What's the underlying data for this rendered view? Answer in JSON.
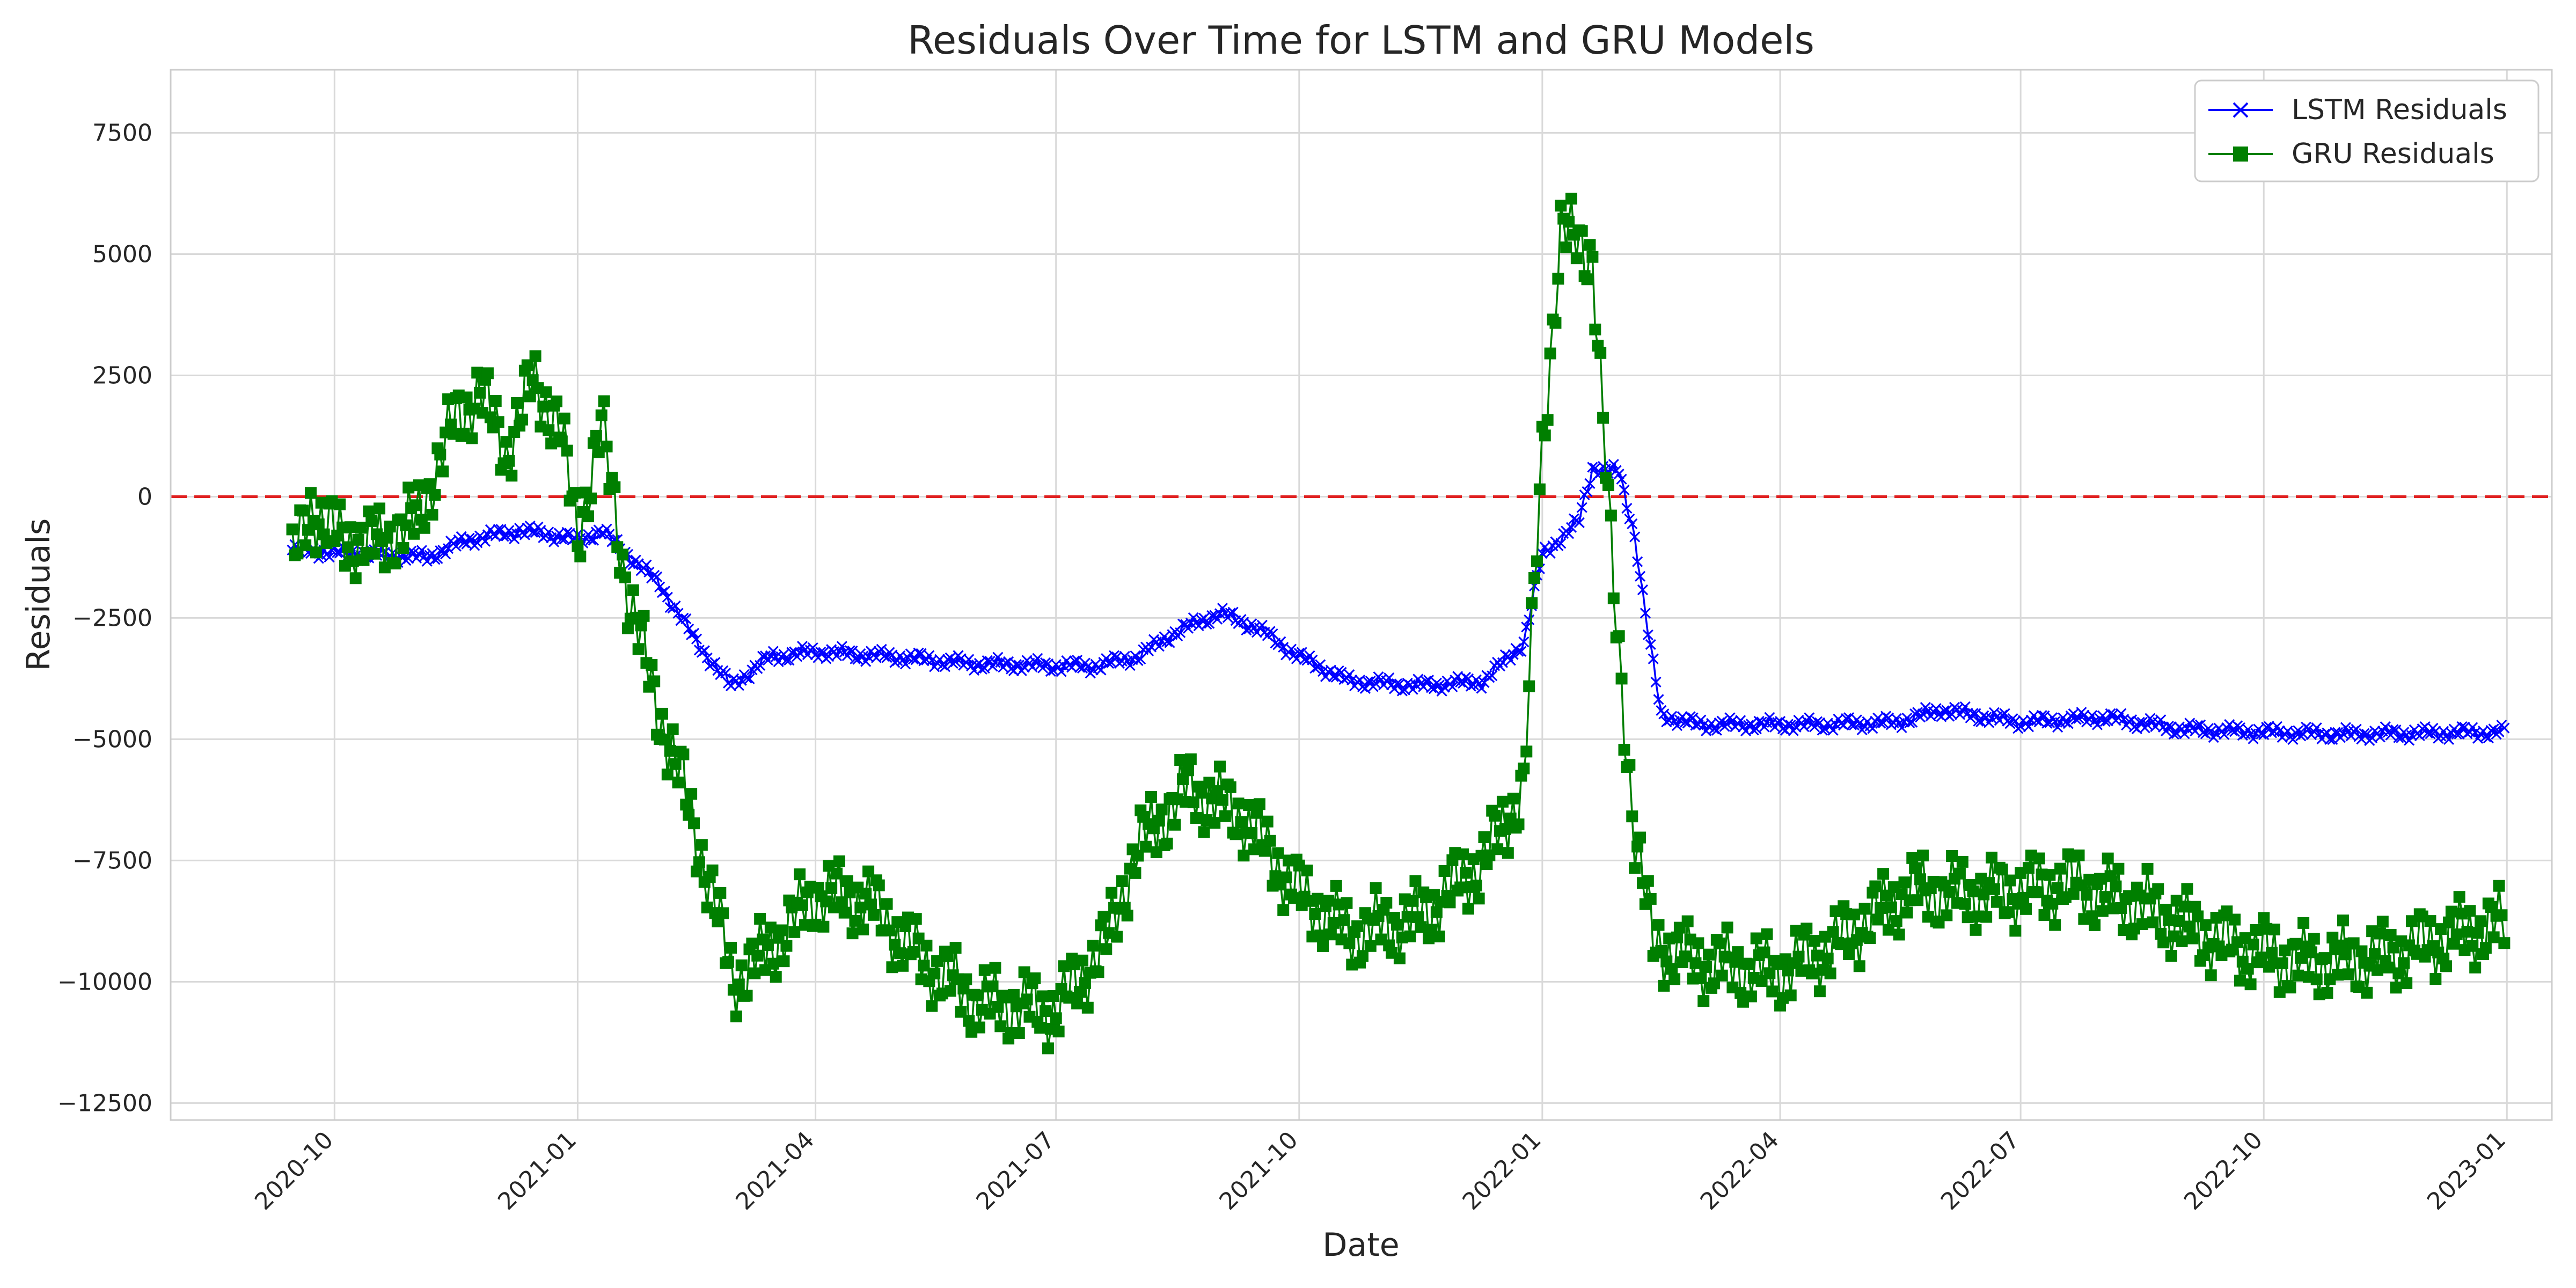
{
  "chart_data": {
    "type": "line",
    "title": "Residuals Over Time for LSTM and GRU Models",
    "xlabel": "Date",
    "ylabel": "Residuals",
    "xlim": [
      "2020-07-31",
      "2023-01-18"
    ],
    "ylim": [
      -12850,
      8800
    ],
    "y_ticks": [
      7500,
      5000,
      2500,
      0,
      -2500,
      -5000,
      -7500,
      -10000,
      -12500
    ],
    "y_tick_labels": [
      "7500",
      "5000",
      "2500",
      "0",
      "−2500",
      "−5000",
      "−7500",
      "−10000",
      "−12500"
    ],
    "x_ticks": [
      "2020-10-01",
      "2021-01-01",
      "2021-04-01",
      "2021-07-01",
      "2021-10-01",
      "2022-01-01",
      "2022-04-01",
      "2022-07-01",
      "2022-10-01",
      "2023-01-01"
    ],
    "x_tick_labels": [
      "2020-10",
      "2021-01",
      "2021-04",
      "2021-07",
      "2021-10",
      "2022-01",
      "2022-04",
      "2022-07",
      "2022-10",
      "2023-01"
    ],
    "grid": true,
    "legend_position": "top-right",
    "reference_line": {
      "y": 0,
      "color": "#e02020",
      "style": "dashed"
    },
    "date_range": [
      "2020-09-15",
      "2022-12-31"
    ],
    "series": [
      {
        "name": "LSTM Residuals",
        "color": "#0000ff",
        "marker": "x",
        "keypoints": [
          [
            "2020-09-15",
            -1100
          ],
          [
            "2020-10-01",
            -1150
          ],
          [
            "2020-10-20",
            -1200
          ],
          [
            "2020-11-05",
            -1250
          ],
          [
            "2020-11-20",
            -900
          ],
          [
            "2020-12-10",
            -700
          ],
          [
            "2020-12-25",
            -800
          ],
          [
            "2021-01-01",
            -900
          ],
          [
            "2021-01-10",
            -700
          ],
          [
            "2021-01-20",
            -1200
          ],
          [
            "2021-02-01",
            -1800
          ],
          [
            "2021-02-15",
            -3000
          ],
          [
            "2021-02-28",
            -3900
          ],
          [
            "2021-03-15",
            -3300
          ],
          [
            "2021-04-01",
            -3200
          ],
          [
            "2021-05-01",
            -3300
          ],
          [
            "2021-06-01",
            -3450
          ],
          [
            "2021-07-15",
            -3500
          ],
          [
            "2021-08-01",
            -3300
          ],
          [
            "2021-08-15",
            -2800
          ],
          [
            "2021-09-01",
            -2400
          ],
          [
            "2021-09-15",
            -2700
          ],
          [
            "2021-10-01",
            -3300
          ],
          [
            "2021-10-20",
            -3800
          ],
          [
            "2021-11-15",
            -3900
          ],
          [
            "2021-12-10",
            -3800
          ],
          [
            "2021-12-25",
            -3000
          ],
          [
            "2022-01-01",
            -1200
          ],
          [
            "2022-01-15",
            -500
          ],
          [
            "2022-01-20",
            600
          ],
          [
            "2022-01-30",
            500
          ],
          [
            "2022-02-05",
            -800
          ],
          [
            "2022-02-10",
            -2800
          ],
          [
            "2022-02-15",
            -4500
          ],
          [
            "2022-03-01",
            -4700
          ],
          [
            "2022-04-15",
            -4700
          ],
          [
            "2022-05-15",
            -4650
          ],
          [
            "2022-06-01",
            -4400
          ],
          [
            "2022-07-01",
            -4650
          ],
          [
            "2022-08-01",
            -4550
          ],
          [
            "2022-09-01",
            -4800
          ],
          [
            "2022-10-01",
            -4850
          ],
          [
            "2022-11-01",
            -4900
          ],
          [
            "2022-12-31",
            -4850
          ]
        ]
      },
      {
        "name": "GRU Residuals",
        "color": "#007f00",
        "marker": "square",
        "keypoints": [
          [
            "2020-09-15",
            -1400
          ],
          [
            "2020-09-22",
            -200
          ],
          [
            "2020-10-01",
            -800
          ],
          [
            "2020-10-15",
            -1000
          ],
          [
            "2020-11-01",
            -500
          ],
          [
            "2020-11-15",
            1500
          ],
          [
            "2020-11-25",
            2200
          ],
          [
            "2020-12-05",
            900
          ],
          [
            "2020-12-15",
            2400
          ],
          [
            "2020-12-25",
            1500
          ],
          [
            "2021-01-01",
            -800
          ],
          [
            "2021-01-10",
            1500
          ],
          [
            "2021-01-20",
            -2000
          ],
          [
            "2021-02-01",
            -4500
          ],
          [
            "2021-02-10",
            -6000
          ],
          [
            "2021-02-20",
            -8000
          ],
          [
            "2021-03-01",
            -10000
          ],
          [
            "2021-03-15",
            -9300
          ],
          [
            "2021-04-01",
            -8200
          ],
          [
            "2021-04-20",
            -8300
          ],
          [
            "2021-05-10",
            -9500
          ],
          [
            "2021-06-01",
            -10400
          ],
          [
            "2021-07-01",
            -10600
          ],
          [
            "2021-07-20",
            -9200
          ],
          [
            "2021-08-01",
            -7200
          ],
          [
            "2021-08-20",
            -6000
          ],
          [
            "2021-09-10",
            -6600
          ],
          [
            "2021-10-01",
            -8200
          ],
          [
            "2021-10-20",
            -9000
          ],
          [
            "2021-11-15",
            -8700
          ],
          [
            "2021-12-10",
            -7500
          ],
          [
            "2021-12-25",
            -6000
          ],
          [
            "2022-01-01",
            1000
          ],
          [
            "2022-01-08",
            5500
          ],
          [
            "2022-01-20",
            5000
          ],
          [
            "2022-01-28",
            -2000
          ],
          [
            "2022-02-05",
            -7000
          ],
          [
            "2022-02-12",
            -9200
          ],
          [
            "2022-03-01",
            -9600
          ],
          [
            "2022-04-01",
            -9800
          ],
          [
            "2022-04-20",
            -9300
          ],
          [
            "2022-05-20",
            -8100
          ],
          [
            "2022-06-20",
            -8200
          ],
          [
            "2022-07-20",
            -8000
          ],
          [
            "2022-08-15",
            -8400
          ],
          [
            "2022-09-15",
            -9200
          ],
          [
            "2022-10-15",
            -9600
          ],
          [
            "2022-11-15",
            -9500
          ],
          [
            "2022-12-15",
            -9000
          ],
          [
            "2022-12-31",
            -8800
          ]
        ]
      }
    ]
  }
}
